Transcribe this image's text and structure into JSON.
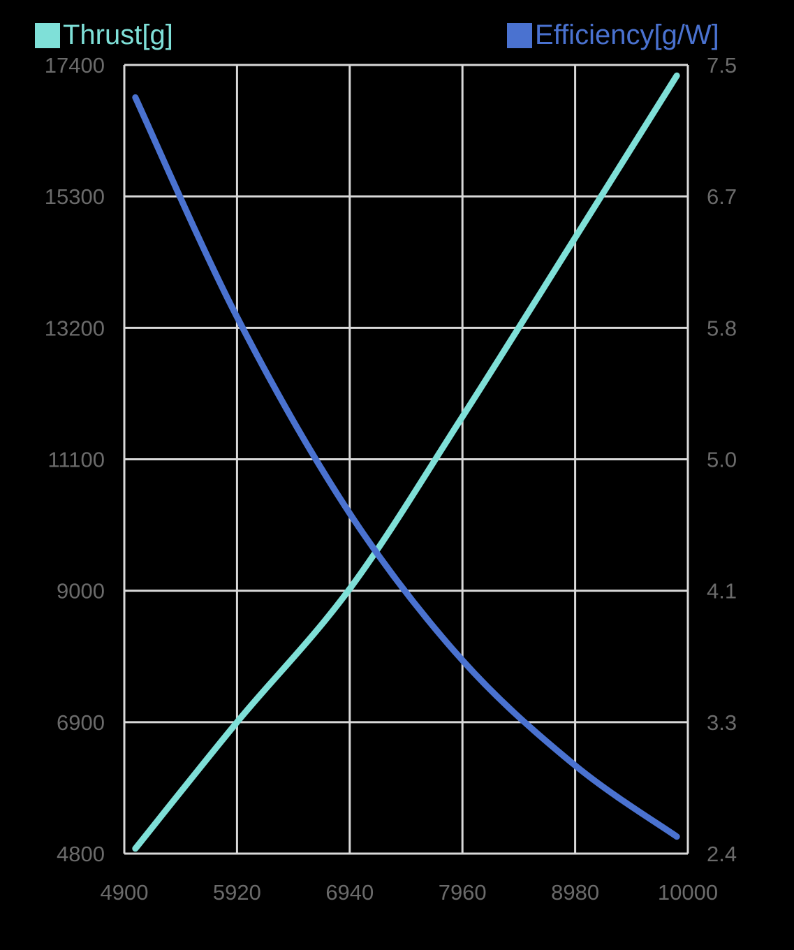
{
  "chart_data": {
    "type": "line",
    "title": "",
    "xlabel": "",
    "ylabel": "Thrust[g]",
    "y2label": "Efficiency[g/W]",
    "legend_position": "top",
    "grid": true,
    "xlim": [
      4900,
      10000
    ],
    "ylim": [
      4800,
      17400
    ],
    "y2lim": [
      2.4,
      7.5
    ],
    "x_ticks": [
      "4900",
      "5920",
      "6940",
      "7960",
      "8980",
      "10000"
    ],
    "y_ticks": [
      "4800",
      "6900",
      "9000",
      "11100",
      "13200",
      "15300",
      "17400"
    ],
    "y2_ticks": [
      "2.4",
      "3.3",
      "4.1",
      "5.0",
      "5.8",
      "6.7",
      "7.5"
    ],
    "x": [
      5000,
      5920,
      6940,
      7960,
      8980,
      9900
    ],
    "series": [
      {
        "name": "Thrust[g]",
        "axis": "left",
        "color": "#7fe0d8",
        "values": [
          4880,
          6900,
          9030,
          11780,
          14640,
          17230
        ]
      },
      {
        "name": "Efficiency[g/W]",
        "axis": "right",
        "color": "#4a72d0",
        "values": [
          7.29,
          5.87,
          4.6,
          3.65,
          2.97,
          2.51
        ]
      }
    ]
  },
  "legend": {
    "thrust_label": "Thrust[g]",
    "efficiency_label": "Efficiency[g/W]"
  }
}
